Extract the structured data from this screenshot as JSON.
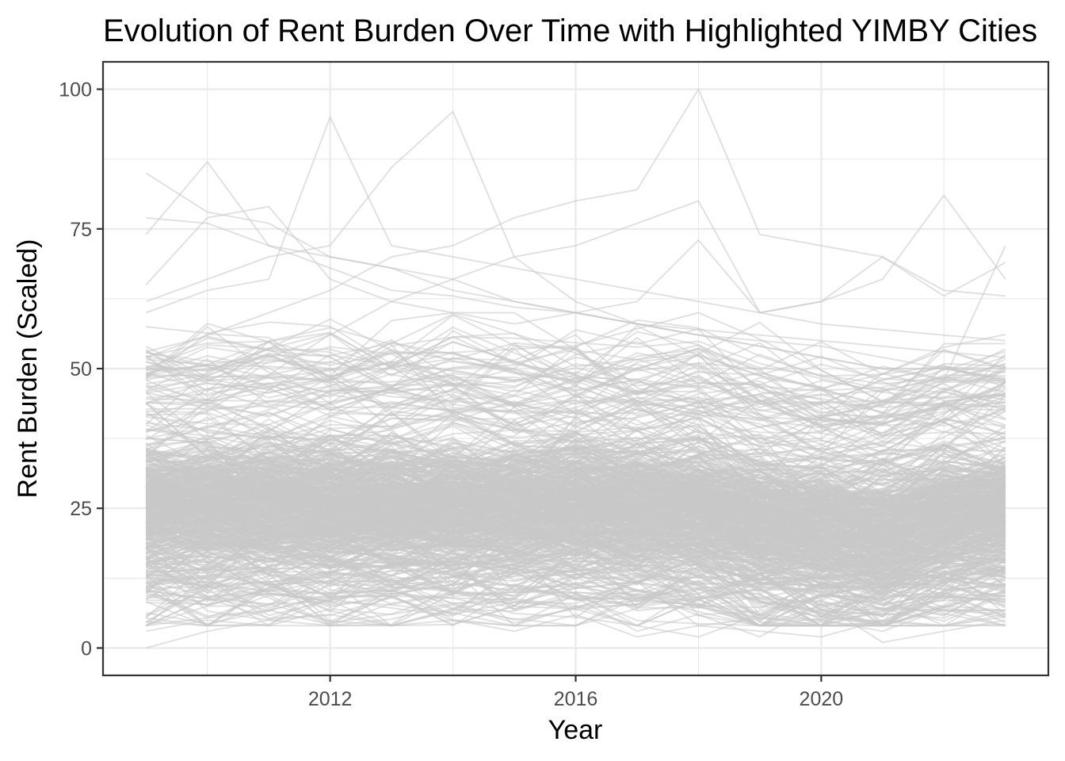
{
  "chart_data": {
    "type": "line",
    "title": "Evolution of Rent Burden Over Time with Highlighted YIMBY Cities",
    "xlabel": "Year",
    "ylabel": "Rent Burden (Scaled)",
    "xlim": [
      2008.3,
      2023.7
    ],
    "ylim": [
      -4.9,
      104.9
    ],
    "x_ticks": [
      2012,
      2016,
      2020
    ],
    "y_ticks": [
      0,
      25,
      50,
      75,
      100
    ],
    "x_tick_labels": [
      "2012",
      "2016",
      "2020"
    ],
    "y_tick_labels": [
      "0",
      "25",
      "50",
      "75",
      "100"
    ],
    "grid": true,
    "legend": "none",
    "years": [
      2009,
      2010,
      2011,
      2012,
      2013,
      2014,
      2015,
      2016,
      2017,
      2018,
      2019,
      2020,
      2021,
      2022,
      2023
    ],
    "line_color": "#c8c8c8",
    "line_opacity": 0.55,
    "series_note": "Hundreds of individual city series (approx. 600), mostly between 10 and 45; notable peaks near 100 (2018), 96 (2014), 95 (2012), 87 (2010), 85 (2009)",
    "series": [
      {
        "values": [
          85,
          78,
          76,
          70,
          68,
          66,
          62,
          60,
          58,
          56,
          55,
          54,
          52,
          50,
          48
        ]
      },
      {
        "values": [
          74,
          87,
          72,
          68,
          64,
          63,
          61,
          60,
          58,
          57,
          56,
          55,
          54,
          53,
          52
        ]
      },
      {
        "values": [
          60,
          64,
          66,
          95,
          72,
          70,
          68,
          66,
          64,
          62,
          60,
          58,
          57,
          56,
          55
        ]
      },
      {
        "values": [
          62,
          66,
          70,
          72,
          86,
          96,
          70,
          62,
          58,
          56,
          54,
          52,
          50,
          50,
          48
        ]
      },
      {
        "values": [
          52,
          56,
          60,
          64,
          70,
          72,
          77,
          80,
          82,
          100,
          74,
          72,
          70,
          64,
          63
        ]
      },
      {
        "values": [
          48,
          50,
          52,
          56,
          62,
          66,
          70,
          72,
          76,
          80,
          60,
          62,
          66,
          81,
          66
        ]
      },
      {
        "values": [
          77,
          76,
          72,
          70,
          68,
          64,
          62,
          60,
          58,
          56,
          54,
          52,
          50,
          48,
          72
        ]
      },
      {
        "values": [
          65,
          77,
          79,
          66,
          62,
          60,
          58,
          60,
          62,
          73,
          60,
          62,
          70,
          63,
          69
        ]
      },
      {
        "values": [
          3,
          5,
          4,
          7,
          6,
          8,
          5,
          7,
          4,
          2,
          6,
          5,
          3,
          7,
          4
        ]
      },
      {
        "values": [
          0,
          3,
          5,
          6,
          4,
          5,
          3,
          6,
          2,
          4,
          3,
          2,
          5,
          4,
          6
        ]
      },
      {
        "values": [
          10,
          12,
          9,
          4,
          8,
          10,
          7,
          9,
          3,
          6,
          2,
          8,
          1,
          3,
          5
        ]
      }
    ]
  }
}
